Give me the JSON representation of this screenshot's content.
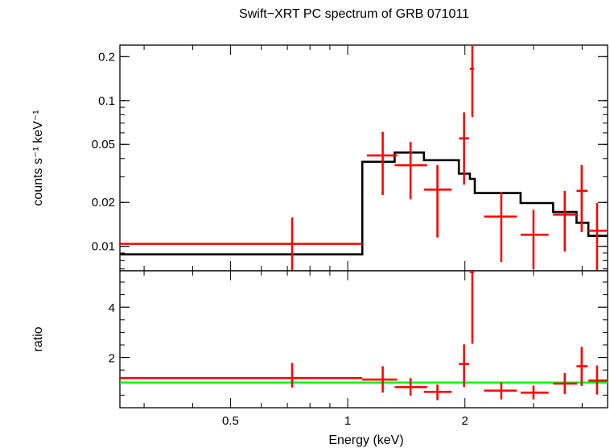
{
  "chart_data": {
    "title": "Swift−XRT PC spectrum of GRB 071011",
    "xlabel": "Energy (keV)",
    "xscale": "log",
    "xlim": [
      0.26,
      4.65
    ],
    "xticks": [
      {
        "value": 0.5,
        "label": "0.5"
      },
      {
        "value": 1,
        "label": "1"
      },
      {
        "value": 2,
        "label": "2"
      }
    ],
    "colors": {
      "data": "#ff0000",
      "model": "#000000",
      "unity": "#00ff00"
    },
    "panels": [
      {
        "type": "scatter",
        "role": "spectrum",
        "ylabel": "counts s⁻¹ keV⁻¹",
        "yscale": "log",
        "ylim": [
          0.0068,
          0.24
        ],
        "yticks": [
          {
            "value": 0.01,
            "label": "0.01"
          },
          {
            "value": 0.02,
            "label": "0.02"
          },
          {
            "value": 0.05,
            "label": "0.05"
          },
          {
            "value": 0.1,
            "label": "0.1"
          },
          {
            "value": 0.2,
            "label": "0.2"
          }
        ],
        "data": [
          {
            "x": 0.72,
            "xlo": 0.26,
            "xhi": 1.09,
            "y": 0.0104,
            "ylo": 0.0067,
            "yhi": 0.0158
          },
          {
            "x": 1.23,
            "xlo": 1.12,
            "xhi": 1.34,
            "y": 0.042,
            "ylo": 0.0225,
            "yhi": 0.061
          },
          {
            "x": 1.45,
            "xlo": 1.32,
            "xhi": 1.6,
            "y": 0.036,
            "ylo": 0.021,
            "yhi": 0.052
          },
          {
            "x": 1.7,
            "xlo": 1.57,
            "xhi": 1.85,
            "y": 0.0245,
            "ylo": 0.0115,
            "yhi": 0.036
          },
          {
            "x": 1.99,
            "xlo": 1.93,
            "xhi": 2.05,
            "y": 0.055,
            "ylo": 0.0265,
            "yhi": 0.083
          },
          {
            "x": 2.09,
            "xlo": 2.06,
            "xhi": 2.11,
            "y": 0.165,
            "ylo": 0.077,
            "yhi": 0.25
          },
          {
            "x": 2.48,
            "xlo": 2.24,
            "xhi": 2.72,
            "y": 0.016,
            "ylo": 0.0078,
            "yhi": 0.0235
          },
          {
            "x": 3.0,
            "xlo": 2.78,
            "xhi": 3.28,
            "y": 0.012,
            "ylo": 0.007,
            "yhi": 0.0178
          },
          {
            "x": 3.61,
            "xlo": 3.37,
            "xhi": 3.88,
            "y": 0.0165,
            "ylo": 0.0092,
            "yhi": 0.024
          },
          {
            "x": 3.99,
            "xlo": 3.87,
            "xhi": 4.13,
            "y": 0.024,
            "ylo": 0.0125,
            "yhi": 0.036
          },
          {
            "x": 4.37,
            "xlo": 4.15,
            "xhi": 4.63,
            "y": 0.0128,
            "ylo": 0.0064,
            "yhi": 0.0198
          }
        ],
        "model_steps": [
          {
            "x0": 0.26,
            "x1": 1.09,
            "y": 0.0088
          },
          {
            "x0": 1.09,
            "x1": 1.32,
            "y": 0.038
          },
          {
            "x0": 1.32,
            "x1": 1.57,
            "y": 0.044
          },
          {
            "x0": 1.57,
            "x1": 1.93,
            "y": 0.039
          },
          {
            "x0": 1.93,
            "x1": 2.06,
            "y": 0.0315
          },
          {
            "x0": 2.06,
            "x1": 2.12,
            "y": 0.029
          },
          {
            "x0": 2.12,
            "x1": 2.78,
            "y": 0.0232
          },
          {
            "x0": 2.78,
            "x1": 3.37,
            "y": 0.0198
          },
          {
            "x0": 3.37,
            "x1": 3.87,
            "y": 0.0172
          },
          {
            "x0": 3.87,
            "x1": 4.15,
            "y": 0.0145
          },
          {
            "x0": 4.15,
            "x1": 4.65,
            "y": 0.0118
          }
        ]
      },
      {
        "type": "scatter",
        "role": "ratio",
        "ylabel": "ratio",
        "yscale": "linear",
        "ylim": [
          0,
          5.45
        ],
        "yticks": [
          {
            "value": 2,
            "label": "2"
          },
          {
            "value": 4,
            "label": "4"
          }
        ],
        "unity_line": 1,
        "data": [
          {
            "x": 0.72,
            "xlo": 0.26,
            "xhi": 1.09,
            "y": 1.18,
            "ylo": 0.8,
            "yhi": 1.78
          },
          {
            "x": 1.23,
            "xlo": 1.09,
            "xhi": 1.34,
            "y": 1.12,
            "ylo": 0.6,
            "yhi": 1.65
          },
          {
            "x": 1.45,
            "xlo": 1.32,
            "xhi": 1.6,
            "y": 0.82,
            "ylo": 0.48,
            "yhi": 1.18
          },
          {
            "x": 1.7,
            "xlo": 1.57,
            "xhi": 1.85,
            "y": 0.63,
            "ylo": 0.3,
            "yhi": 0.92
          },
          {
            "x": 1.99,
            "xlo": 1.93,
            "xhi": 2.05,
            "y": 1.74,
            "ylo": 0.82,
            "yhi": 2.52
          },
          {
            "x": 2.09,
            "xlo": 2.06,
            "xhi": 2.11,
            "y": 5.4,
            "ylo": 2.55,
            "yhi": 6.5
          },
          {
            "x": 2.48,
            "xlo": 2.24,
            "xhi": 2.72,
            "y": 0.68,
            "ylo": 0.33,
            "yhi": 1.0
          },
          {
            "x": 3.0,
            "xlo": 2.78,
            "xhi": 3.28,
            "y": 0.6,
            "ylo": 0.33,
            "yhi": 0.88
          },
          {
            "x": 3.61,
            "xlo": 3.37,
            "xhi": 3.88,
            "y": 0.96,
            "ylo": 0.54,
            "yhi": 1.38
          },
          {
            "x": 3.99,
            "xlo": 3.87,
            "xhi": 4.13,
            "y": 1.65,
            "ylo": 0.87,
            "yhi": 2.42
          },
          {
            "x": 4.37,
            "xlo": 4.15,
            "xhi": 4.63,
            "y": 1.08,
            "ylo": 0.52,
            "yhi": 1.68
          }
        ]
      }
    ]
  }
}
